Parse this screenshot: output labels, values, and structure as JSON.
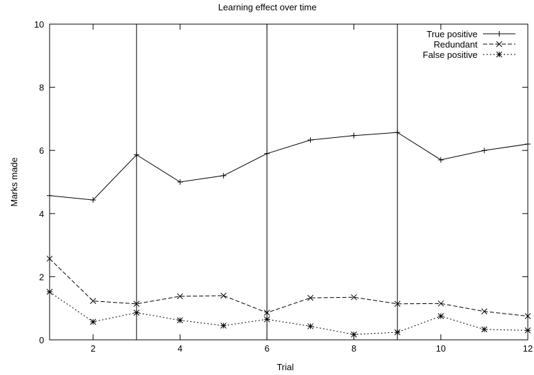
{
  "chart_data": {
    "type": "line",
    "title": "Learning effect over time",
    "xlabel": "Trial",
    "ylabel": "Marks made",
    "xlim": [
      1,
      12
    ],
    "ylim": [
      0,
      10
    ],
    "xticks": [
      2,
      4,
      6,
      8,
      10,
      12
    ],
    "yticks": [
      0,
      2,
      4,
      6,
      8,
      10
    ],
    "grid": false,
    "legend_position": "top-right",
    "vertical_lines": [
      3,
      6,
      9
    ],
    "x": [
      1,
      2,
      3,
      4,
      5,
      6,
      7,
      8,
      9,
      10,
      11,
      12
    ],
    "series": [
      {
        "name": "True positive",
        "marker": "plus",
        "dash": "solid",
        "values": [
          4.57,
          4.43,
          5.86,
          5.0,
          5.2,
          5.9,
          6.33,
          6.47,
          6.57,
          5.7,
          6.0,
          6.2
        ]
      },
      {
        "name": "Redundant",
        "marker": "cross",
        "dash": "dashed",
        "values": [
          2.57,
          1.23,
          1.14,
          1.38,
          1.4,
          0.86,
          1.33,
          1.35,
          1.14,
          1.15,
          0.9,
          0.75
        ]
      },
      {
        "name": "False positive",
        "marker": "star",
        "dash": "dotted",
        "values": [
          1.52,
          0.57,
          0.86,
          0.62,
          0.45,
          0.65,
          0.43,
          0.17,
          0.24,
          0.75,
          0.33,
          0.3
        ]
      }
    ]
  }
}
